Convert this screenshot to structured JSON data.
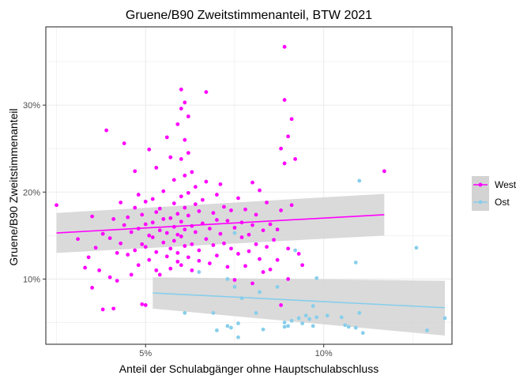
{
  "chart_data": {
    "type": "scatter",
    "title": "Gruene/B90 Zweitstimmenanteil, BTW 2021",
    "xlabel": "Anteil der Schulabgänger ohne Hauptschulabschluss",
    "ylabel": "Gruene/B90 Zweitstimmenanteil",
    "xlim": [
      2.2,
      13.6
    ],
    "ylim": [
      2.5,
      39.0
    ],
    "xticks": [
      {
        "value": 5,
        "label": "5%"
      },
      {
        "value": 10,
        "label": "10%"
      }
    ],
    "yticks": [
      {
        "value": 10,
        "label": "10%"
      },
      {
        "value": 20,
        "label": "20%"
      },
      {
        "value": 30,
        "label": "30%"
      }
    ],
    "grid": true,
    "legend_position": "right",
    "colors": {
      "West": "#ff00ff",
      "Ost": "#87ceeb",
      "ribbon": "#d3d3d3",
      "panel_border": "#333333",
      "grid": "#ebebeb"
    },
    "series": [
      {
        "name": "West",
        "fit": {
          "x": [
            2.5,
            11.7
          ],
          "y": [
            15.3,
            17.4
          ],
          "ci_low": [
            13.0,
            15.0
          ],
          "ci_high": [
            17.6,
            19.8
          ]
        },
        "points": [
          [
            2.5,
            18.5
          ],
          [
            3.1,
            14.6
          ],
          [
            3.3,
            11.3
          ],
          [
            3.4,
            12.5
          ],
          [
            3.5,
            17.2
          ],
          [
            3.5,
            9.0
          ],
          [
            3.6,
            13.6
          ],
          [
            3.7,
            11.0
          ],
          [
            3.8,
            6.5
          ],
          [
            3.8,
            15.2
          ],
          [
            3.9,
            27.1
          ],
          [
            4.0,
            10.2
          ],
          [
            4.0,
            14.7
          ],
          [
            4.1,
            6.6
          ],
          [
            4.1,
            16.9
          ],
          [
            4.2,
            13.0
          ],
          [
            4.2,
            9.8
          ],
          [
            4.3,
            18.8
          ],
          [
            4.3,
            14.1
          ],
          [
            4.4,
            25.6
          ],
          [
            4.4,
            16.2
          ],
          [
            4.5,
            12.8
          ],
          [
            4.5,
            17.1
          ],
          [
            4.6,
            15.4
          ],
          [
            4.6,
            10.5
          ],
          [
            4.7,
            22.4
          ],
          [
            4.7,
            13.3
          ],
          [
            4.7,
            18.2
          ],
          [
            4.8,
            11.6
          ],
          [
            4.8,
            15.8
          ],
          [
            4.8,
            19.7
          ],
          [
            4.9,
            14.0
          ],
          [
            4.9,
            17.4
          ],
          [
            4.9,
            7.1
          ],
          [
            5.0,
            16.3
          ],
          [
            5.0,
            13.7
          ],
          [
            5.0,
            18.9
          ],
          [
            5.0,
            7.0
          ],
          [
            5.1,
            15.0
          ],
          [
            5.1,
            12.2
          ],
          [
            5.1,
            24.9
          ],
          [
            5.2,
            19.2
          ],
          [
            5.2,
            14.8
          ],
          [
            5.2,
            16.5
          ],
          [
            5.3,
            11.0
          ],
          [
            5.3,
            17.7
          ],
          [
            5.3,
            13.1
          ],
          [
            5.3,
            22.8
          ],
          [
            5.4,
            15.6
          ],
          [
            5.4,
            18.1
          ],
          [
            5.4,
            10.5
          ],
          [
            5.5,
            16.9
          ],
          [
            5.5,
            14.2
          ],
          [
            5.5,
            20.1
          ],
          [
            5.6,
            12.6
          ],
          [
            5.6,
            26.3
          ],
          [
            5.6,
            15.3
          ],
          [
            5.7,
            17.0
          ],
          [
            5.7,
            13.5
          ],
          [
            5.7,
            24.0
          ],
          [
            5.7,
            11.2
          ],
          [
            5.8,
            18.7
          ],
          [
            5.8,
            16.0
          ],
          [
            5.8,
            14.4
          ],
          [
            5.8,
            21.4
          ],
          [
            5.9,
            12.0
          ],
          [
            5.9,
            17.5
          ],
          [
            5.9,
            27.8
          ],
          [
            5.9,
            15.1
          ],
          [
            5.9,
            13.0
          ],
          [
            6.0,
            23.8
          ],
          [
            6.0,
            19.5
          ],
          [
            6.0,
            16.6
          ],
          [
            6.0,
            14.9
          ],
          [
            6.0,
            11.6
          ],
          [
            6.0,
            29.6
          ],
          [
            6.0,
            31.8
          ],
          [
            6.1,
            18.2
          ],
          [
            6.1,
            15.7
          ],
          [
            6.1,
            13.8
          ],
          [
            6.1,
            21.9
          ],
          [
            6.1,
            26.0
          ],
          [
            6.1,
            30.3
          ],
          [
            6.2,
            17.3
          ],
          [
            6.2,
            12.5
          ],
          [
            6.2,
            24.5
          ],
          [
            6.2,
            19.9
          ],
          [
            6.2,
            28.7
          ],
          [
            6.3,
            16.1
          ],
          [
            6.3,
            14.0
          ],
          [
            6.3,
            22.3
          ],
          [
            6.3,
            11.0
          ],
          [
            6.4,
            18.6
          ],
          [
            6.4,
            15.4
          ],
          [
            6.4,
            20.6
          ],
          [
            6.5,
            13.3
          ],
          [
            6.5,
            17.8
          ],
          [
            6.5,
            12.1
          ],
          [
            6.6,
            19.1
          ],
          [
            6.6,
            16.4
          ],
          [
            6.7,
            14.6
          ],
          [
            6.7,
            31.5
          ],
          [
            6.7,
            21.2
          ],
          [
            6.8,
            15.8
          ],
          [
            6.8,
            11.8
          ],
          [
            6.9,
            17.6
          ],
          [
            6.9,
            13.9
          ],
          [
            7.0,
            19.7
          ],
          [
            7.0,
            16.8
          ],
          [
            7.0,
            12.7
          ],
          [
            7.1,
            15.2
          ],
          [
            7.1,
            20.9
          ],
          [
            7.2,
            14.1
          ],
          [
            7.2,
            18.3
          ],
          [
            7.3,
            16.7
          ],
          [
            7.3,
            11.4
          ],
          [
            7.4,
            13.5
          ],
          [
            7.4,
            17.9
          ],
          [
            7.5,
            15.9
          ],
          [
            7.5,
            9.9
          ],
          [
            7.6,
            19.3
          ],
          [
            7.6,
            12.9
          ],
          [
            7.7,
            14.8
          ],
          [
            7.7,
            16.5
          ],
          [
            7.8,
            18.0
          ],
          [
            7.8,
            11.5
          ],
          [
            7.9,
            15.1
          ],
          [
            7.9,
            13.2
          ],
          [
            8.0,
            21.1
          ],
          [
            8.0,
            16.2
          ],
          [
            8.0,
            9.5
          ],
          [
            8.1,
            17.4
          ],
          [
            8.1,
            14.0
          ],
          [
            8.2,
            20.2
          ],
          [
            8.2,
            12.3
          ],
          [
            8.3,
            15.6
          ],
          [
            8.3,
            10.8
          ],
          [
            8.4,
            18.8
          ],
          [
            8.4,
            13.7
          ],
          [
            8.5,
            16.3
          ],
          [
            8.5,
            11.1
          ],
          [
            8.6,
            14.5
          ],
          [
            8.7,
            15.7
          ],
          [
            8.7,
            12.2
          ],
          [
            8.8,
            7.0
          ],
          [
            8.8,
            17.9
          ],
          [
            8.8,
            25.0
          ],
          [
            8.9,
            23.3
          ],
          [
            8.9,
            30.6
          ],
          [
            8.9,
            36.7
          ],
          [
            9.0,
            26.4
          ],
          [
            9.0,
            13.5
          ],
          [
            9.0,
            10.0
          ],
          [
            9.1,
            28.4
          ],
          [
            9.1,
            18.5
          ],
          [
            9.2,
            23.8
          ],
          [
            9.3,
            12.9
          ],
          [
            9.4,
            11.6
          ],
          [
            11.7,
            22.4
          ]
        ]
      },
      {
        "name": "Ost",
        "fit": {
          "x": [
            5.2,
            13.4
          ],
          "y": [
            8.4,
            6.7
          ],
          "ci_low": [
            6.6,
            3.5
          ],
          "ci_high": [
            10.2,
            9.8
          ]
        },
        "points": [
          [
            6.1,
            6.1
          ],
          [
            6.5,
            10.8
          ],
          [
            6.9,
            6.1
          ],
          [
            7.0,
            4.1
          ],
          [
            7.3,
            4.6
          ],
          [
            7.3,
            10.0
          ],
          [
            7.4,
            4.4
          ],
          [
            7.5,
            15.3
          ],
          [
            7.5,
            9.1
          ],
          [
            7.6,
            3.3
          ],
          [
            7.6,
            4.9
          ],
          [
            7.7,
            7.8
          ],
          [
            8.1,
            6.1
          ],
          [
            8.2,
            8.5
          ],
          [
            8.3,
            4.2
          ],
          [
            8.7,
            9.1
          ],
          [
            8.9,
            5.0
          ],
          [
            8.9,
            4.5
          ],
          [
            9.0,
            4.6
          ],
          [
            9.1,
            5.2
          ],
          [
            9.2,
            13.3
          ],
          [
            9.3,
            5.5
          ],
          [
            9.4,
            4.9
          ],
          [
            9.5,
            5.8
          ],
          [
            9.6,
            5.4
          ],
          [
            9.7,
            6.9
          ],
          [
            9.7,
            4.6
          ],
          [
            9.8,
            5.6
          ],
          [
            9.8,
            10.1
          ],
          [
            10.1,
            5.8
          ],
          [
            10.5,
            5.6
          ],
          [
            10.6,
            4.7
          ],
          [
            10.7,
            4.5
          ],
          [
            10.9,
            11.9
          ],
          [
            10.9,
            4.4
          ],
          [
            11.0,
            21.3
          ],
          [
            11.0,
            6.1
          ],
          [
            11.1,
            3.8
          ],
          [
            12.6,
            13.6
          ],
          [
            12.9,
            4.1
          ],
          [
            13.4,
            5.5
          ]
        ]
      }
    ]
  }
}
